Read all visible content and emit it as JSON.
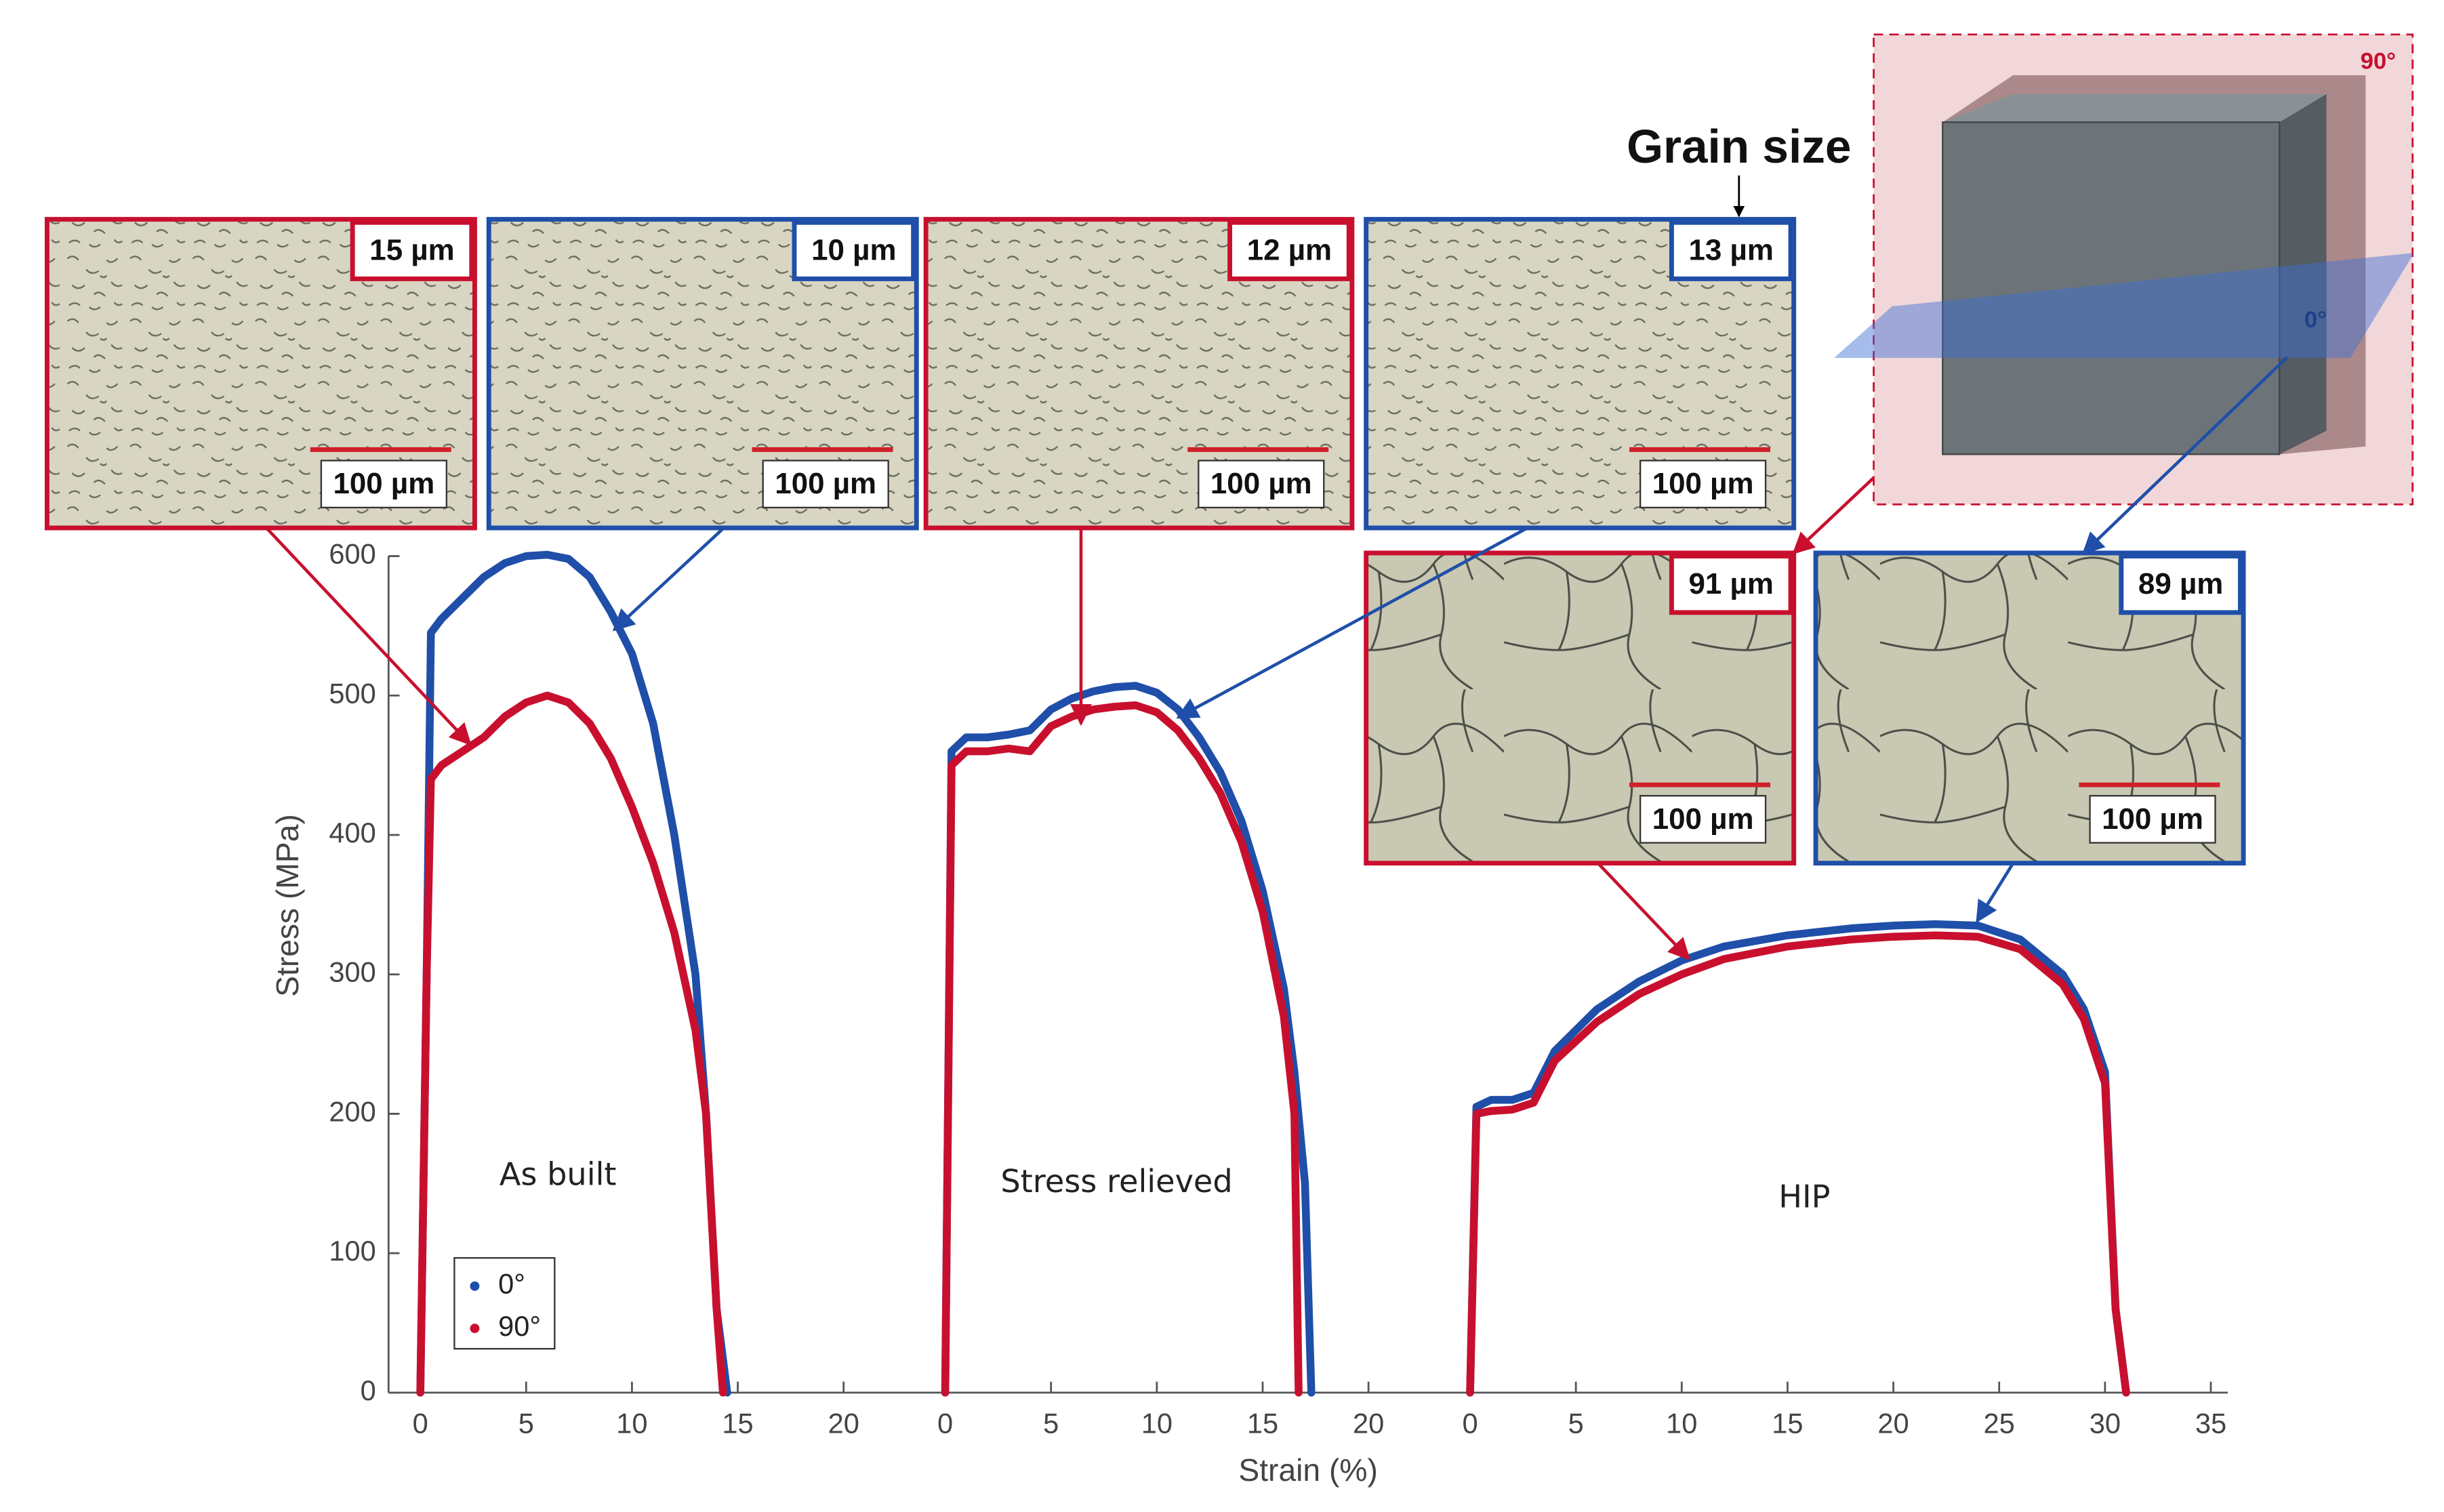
{
  "chart_data": {
    "type": "line",
    "ylabel": "Stress (MPa)",
    "xlabel": "Strain (%)",
    "ylim": [
      0,
      600
    ],
    "yticks": [
      0,
      100,
      200,
      300,
      400,
      500,
      600
    ],
    "legend": [
      {
        "name": "0°",
        "color": "#1f4fa8"
      },
      {
        "name": "90°",
        "color": "#c8102e"
      }
    ],
    "panels": [
      {
        "label": "As built",
        "xlim": [
          -1.5,
          23.2
        ],
        "xticks": [
          0,
          5,
          10,
          15,
          20
        ],
        "series": [
          {
            "x": [
              0,
              0.3,
              0.5,
              1,
              2,
              3,
              4,
              5,
              6,
              7,
              8,
              9,
              10,
              11,
              12,
              13,
              13.5,
              14,
              14.5
            ],
            "values": [
              0,
              300,
              545,
              555,
              570,
              585,
              595,
              600,
              601,
              598,
              585,
              560,
              530,
              480,
              400,
              300,
              200,
              60,
              0
            ]
          },
          {
            "x": [
              0,
              0.3,
              0.5,
              1,
              2,
              3,
              4,
              5,
              6,
              7,
              8,
              9,
              10,
              11,
              12,
              13,
              13.5,
              14,
              14.3
            ],
            "values": [
              0,
              300,
              440,
              450,
              460,
              470,
              485,
              495,
              500,
              495,
              480,
              455,
              420,
              380,
              330,
              260,
              200,
              60,
              0
            ]
          }
        ]
      },
      {
        "label": "Stress relieved",
        "xlim": [
          -1.6,
          23.1
        ],
        "xticks": [
          0,
          5,
          10,
          15,
          20
        ],
        "series": [
          {
            "x": [
              0,
              0.3,
              1,
              2,
              3,
              4,
              5,
              6,
              7,
              8,
              9,
              10,
              11,
              12,
              13,
              14,
              15,
              16,
              16.5,
              17,
              17.3
            ],
            "values": [
              0,
              460,
              470,
              470,
              472,
              475,
              490,
              498,
              503,
              506,
              507,
              502,
              490,
              470,
              445,
              410,
              360,
              290,
              230,
              150,
              0
            ]
          },
          {
            "x": [
              0,
              0.3,
              1,
              2,
              3,
              4,
              5,
              6,
              7,
              8,
              9,
              10,
              11,
              12,
              13,
              14,
              15,
              16,
              16.5,
              16.7
            ],
            "values": [
              0,
              450,
              460,
              460,
              462,
              460,
              478,
              485,
              490,
              492,
              493,
              488,
              475,
              455,
              430,
              395,
              345,
              270,
              200,
              0
            ]
          }
        ]
      },
      {
        "label": "HIP",
        "xlim": [
          -1.7,
          35.8
        ],
        "xticks": [
          0,
          5,
          10,
          15,
          20,
          25,
          30,
          35
        ],
        "series": [
          {
            "x": [
              0,
              0.3,
              1,
              2,
              3,
              4,
              6,
              8,
              10,
              12,
              15,
              18,
              20,
              22,
              24,
              26,
              28,
              29,
              30,
              30.5,
              31
            ],
            "values": [
              0,
              205,
              210,
              210,
              215,
              245,
              275,
              295,
              310,
              320,
              328,
              333,
              335,
              336,
              335,
              325,
              300,
              275,
              230,
              60,
              0
            ]
          },
          {
            "x": [
              0,
              0.3,
              1,
              2,
              3,
              4,
              6,
              8,
              10,
              12,
              15,
              18,
              20,
              22,
              24,
              26,
              28,
              29,
              30,
              30.5,
              31
            ],
            "values": [
              0,
              200,
              202,
              203,
              208,
              238,
              266,
              286,
              300,
              311,
              320,
              325,
              327,
              328,
              327,
              318,
              293,
              268,
              222,
              60,
              0
            ]
          }
        ]
      }
    ],
    "annotation": "Grain size",
    "cube_labels": [
      "90°",
      "0°"
    ],
    "insets": [
      {
        "grain_size": "15 µm",
        "scale_bar": "100 µm",
        "color": "#c8102e"
      },
      {
        "grain_size": "10 µm",
        "scale_bar": "100 µm",
        "color": "#1f4fa8"
      },
      {
        "grain_size": "12 µm",
        "scale_bar": "100 µm",
        "color": "#c8102e"
      },
      {
        "grain_size": "13 µm",
        "scale_bar": "100 µm",
        "color": "#1f4fa8"
      },
      {
        "grain_size": "91 µm",
        "scale_bar": "100 µm",
        "color": "#c8102e"
      },
      {
        "grain_size": "89 µm",
        "scale_bar": "100 µm",
        "color": "#1f4fa8"
      }
    ]
  }
}
